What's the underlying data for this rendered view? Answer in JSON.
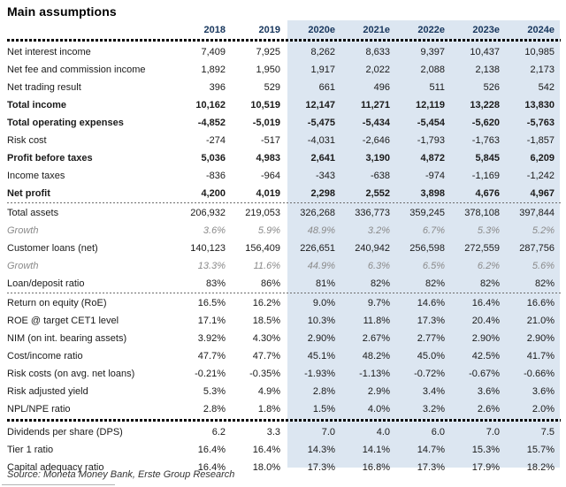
{
  "title": "Main assumptions",
  "source": "Source: Moneta Money Bank, Erste Group Research",
  "colors": {
    "estimate_shade": "#dce6f1",
    "header_text": "#17365d",
    "growth_text": "#8a8a8a",
    "body_text": "#1a1a1a"
  },
  "chart_data": {
    "type": "table",
    "title": "Main assumptions",
    "columns": [
      "",
      "2018",
      "2019",
      "2020e",
      "2021e",
      "2022e",
      "2023e",
      "2024e"
    ],
    "estimate_columns": [
      "2020e",
      "2021e",
      "2022e",
      "2023e",
      "2024e"
    ],
    "rows": [
      {
        "label": "Net interest income",
        "style": "normal",
        "values": [
          "7,409",
          "7,925",
          "8,262",
          "8,633",
          "9,397",
          "10,437",
          "10,985"
        ]
      },
      {
        "label": "Net fee and commission income",
        "style": "normal",
        "values": [
          "1,892",
          "1,950",
          "1,917",
          "2,022",
          "2,088",
          "2,138",
          "2,173"
        ]
      },
      {
        "label": "Net trading result",
        "style": "normal",
        "values": [
          "396",
          "529",
          "661",
          "496",
          "511",
          "526",
          "542"
        ]
      },
      {
        "label": "Total income",
        "style": "bold",
        "values": [
          "10,162",
          "10,519",
          "12,147",
          "11,271",
          "12,119",
          "13,228",
          "13,830"
        ]
      },
      {
        "label": "Total operating expenses",
        "style": "bold",
        "values": [
          "-4,852",
          "-5,019",
          "-5,475",
          "-5,434",
          "-5,454",
          "-5,620",
          "-5,763"
        ]
      },
      {
        "label": "Risk cost",
        "style": "normal",
        "values": [
          "-274",
          "-517",
          "-4,031",
          "-2,646",
          "-1,793",
          "-1,763",
          "-1,857"
        ]
      },
      {
        "label": "Profit before taxes",
        "style": "bold",
        "values": [
          "5,036",
          "4,983",
          "2,641",
          "3,190",
          "4,872",
          "5,845",
          "6,209"
        ]
      },
      {
        "label": "Income taxes",
        "style": "normal",
        "values": [
          "-836",
          "-964",
          "-343",
          "-638",
          "-974",
          "-1,169",
          "-1,242"
        ]
      },
      {
        "label": "Net profit",
        "style": "bold",
        "divider_after": "fine",
        "values": [
          "4,200",
          "4,019",
          "2,298",
          "2,552",
          "3,898",
          "4,676",
          "4,967"
        ]
      },
      {
        "label": "Total assets",
        "style": "normal",
        "values": [
          "206,932",
          "219,053",
          "326,268",
          "336,773",
          "359,245",
          "378,108",
          "397,844"
        ]
      },
      {
        "label": "Growth",
        "style": "growth",
        "values": [
          "3.6%",
          "5.9%",
          "48.9%",
          "3.2%",
          "6.7%",
          "5.3%",
          "5.2%"
        ]
      },
      {
        "label": "Customer loans (net)",
        "style": "normal",
        "values": [
          "140,123",
          "156,409",
          "226,651",
          "240,942",
          "256,598",
          "272,559",
          "287,756"
        ]
      },
      {
        "label": "Growth",
        "style": "growth",
        "values": [
          "13.3%",
          "11.6%",
          "44.9%",
          "6.3%",
          "6.5%",
          "6.2%",
          "5.6%"
        ]
      },
      {
        "label": "Loan/deposit ratio",
        "style": "normal",
        "divider_after": "fine",
        "values": [
          "83%",
          "86%",
          "81%",
          "82%",
          "82%",
          "82%",
          "82%"
        ]
      },
      {
        "label": "Return on equity (RoE)",
        "style": "normal",
        "values": [
          "16.5%",
          "16.2%",
          "9.0%",
          "9.7%",
          "14.6%",
          "16.4%",
          "16.6%"
        ]
      },
      {
        "label": "ROE @ target CET1 level",
        "style": "normal",
        "values": [
          "17.1%",
          "18.5%",
          "10.3%",
          "11.8%",
          "17.3%",
          "20.4%",
          "21.0%"
        ]
      },
      {
        "label": "NIM (on int. bearing assets)",
        "style": "normal",
        "values": [
          "3.92%",
          "4.30%",
          "2.90%",
          "2.67%",
          "2.77%",
          "2.90%",
          "2.90%"
        ]
      },
      {
        "label": "Cost/income ratio",
        "style": "normal",
        "values": [
          "47.7%",
          "47.7%",
          "45.1%",
          "48.2%",
          "45.0%",
          "42.5%",
          "41.7%"
        ]
      },
      {
        "label": "Risk costs (on avg. net loans)",
        "style": "normal",
        "values": [
          "-0.21%",
          "-0.35%",
          "-1.93%",
          "-1.13%",
          "-0.72%",
          "-0.67%",
          "-0.66%"
        ]
      },
      {
        "label": "Risk adjusted yield",
        "style": "normal",
        "values": [
          "5.3%",
          "4.9%",
          "2.8%",
          "2.9%",
          "3.4%",
          "3.6%",
          "3.6%"
        ]
      },
      {
        "label": "NPL/NPE ratio",
        "style": "normal",
        "divider_after": "thick",
        "values": [
          "2.8%",
          "1.8%",
          "1.5%",
          "4.0%",
          "3.2%",
          "2.6%",
          "2.0%"
        ]
      },
      {
        "label": "Dividends per share (DPS)",
        "style": "normal",
        "values": [
          "6.2",
          "3.3",
          "7.0",
          "4.0",
          "6.0",
          "7.0",
          "7.5"
        ]
      },
      {
        "label": "Tier 1 ratio",
        "style": "normal",
        "values": [
          "16.4%",
          "16.4%",
          "14.3%",
          "14.1%",
          "14.7%",
          "15.3%",
          "15.7%"
        ]
      },
      {
        "label": "Capital adequacy ratio",
        "style": "normal",
        "values": [
          "16.4%",
          "18.0%",
          "17.3%",
          "16.8%",
          "17.3%",
          "17.9%",
          "18.2%"
        ]
      }
    ]
  }
}
